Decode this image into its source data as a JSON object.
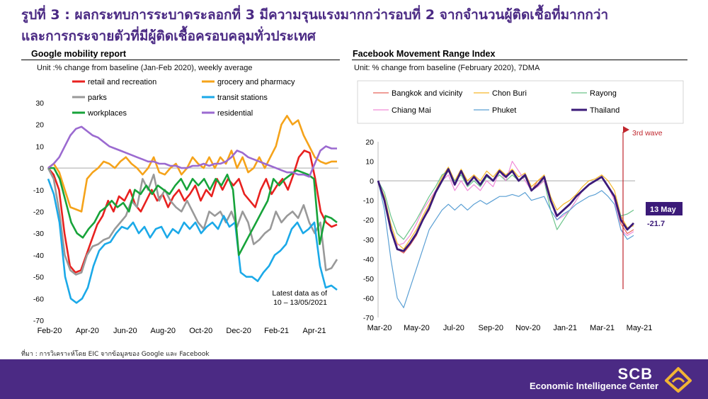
{
  "title_line1": "รูปที่ 3 : ผลกระทบการระบาดระลอกที่ 3 มีความรุนแรงมากกว่ารอบที่ 2 จากจำนวนผู้ติดเชื้อที่มากกว่า",
  "title_line2": "และการกระจายตัวที่มีผู้ติดเชื้อครอบคลุมทั่วประเทศ",
  "source": "ที่มา : การวิเคราะห์โดย EIC จากข้อมูลของ Google และ Facebook",
  "footer": {
    "brand": "SCB",
    "subtitle": "Economic Intelligence Center"
  },
  "chart_data": [
    {
      "type": "line",
      "title": "Google mobility report",
      "unit": "Unit :% change from baseline (Jan-Feb 2020), weekly average",
      "ylim": [
        -70,
        30
      ],
      "yticks": [
        "30",
        "20",
        "10",
        "0",
        "-10",
        "-20",
        "-30",
        "-40",
        "-50",
        "-60",
        "-70"
      ],
      "x_tick_labels": [
        "Feb-20",
        "Apr-20",
        "Jun-20",
        "Aug-20",
        "Oct-20",
        "Dec-20",
        "Feb-21",
        "Apr-21"
      ],
      "note_line1": "Latest data as of",
      "note_line2": "10 – 13/05/2021",
      "series": [
        {
          "name": "retail and recreation",
          "color": "#e8211f",
          "values": [
            0,
            -3,
            -10,
            -30,
            -45,
            -48,
            -47,
            -40,
            -33,
            -26,
            -22,
            -15,
            -20,
            -13,
            -15,
            -10,
            -17,
            -20,
            -15,
            -10,
            -15,
            -12,
            -18,
            -13,
            -10,
            -15,
            -12,
            -8,
            -15,
            -10,
            -13,
            -5,
            -10,
            -5,
            -8,
            -5,
            -12,
            -15,
            -18,
            -10,
            -5,
            -12,
            -8,
            -5,
            -10,
            -3,
            5,
            8,
            7,
            -5,
            -20,
            -25,
            -27,
            -26
          ]
        },
        {
          "name": "grocery and pharmacy",
          "color": "#f5a31a",
          "values": [
            0,
            2,
            -2,
            -10,
            -18,
            -19,
            -20,
            -5,
            -2,
            0,
            3,
            2,
            0,
            3,
            5,
            2,
            0,
            -3,
            0,
            5,
            -2,
            -3,
            0,
            2,
            -3,
            0,
            5,
            2,
            0,
            5,
            0,
            5,
            2,
            8,
            0,
            5,
            -2,
            0,
            5,
            0,
            5,
            10,
            20,
            24,
            20,
            22,
            15,
            10,
            5,
            3,
            2,
            3,
            3
          ]
        },
        {
          "name": "parks",
          "color": "#999999",
          "values": [
            0,
            -5,
            -20,
            -40,
            -47,
            -49,
            -48,
            -40,
            -36,
            -35,
            -33,
            -32,
            -28,
            -25,
            -22,
            -15,
            -18,
            -5,
            -10,
            -3,
            -15,
            -10,
            -15,
            -18,
            -20,
            -15,
            -20,
            -25,
            -28,
            -20,
            -22,
            -20,
            -25,
            -20,
            -27,
            -20,
            -25,
            -35,
            -33,
            -30,
            -28,
            -20,
            -25,
            -22,
            -20,
            -23,
            -17,
            -25,
            -30,
            -25,
            -47,
            -46,
            -42
          ]
        },
        {
          "name": "transit stations",
          "color": "#1ba9e8",
          "values": [
            -5,
            -12,
            -25,
            -50,
            -60,
            -62,
            -60,
            -55,
            -45,
            -38,
            -35,
            -34,
            -30,
            -27,
            -28,
            -25,
            -30,
            -27,
            -32,
            -28,
            -27,
            -32,
            -28,
            -30,
            -25,
            -28,
            -25,
            -30,
            -27,
            -25,
            -28,
            -22,
            -27,
            -25,
            -48,
            -50,
            -50,
            -52,
            -48,
            -45,
            -40,
            -38,
            -35,
            -28,
            -25,
            -30,
            -28,
            -25,
            -45,
            -55,
            -54,
            -56
          ]
        },
        {
          "name": "workplaces",
          "color": "#17a33a",
          "values": [
            0,
            0,
            -5,
            -15,
            -25,
            -30,
            -32,
            -28,
            -25,
            -20,
            -18,
            -15,
            -18,
            -16,
            -20,
            -10,
            -12,
            -8,
            -12,
            -8,
            -10,
            -12,
            -8,
            -5,
            -10,
            -5,
            -8,
            -5,
            -10,
            -5,
            -8,
            -3,
            -10,
            -40,
            -35,
            -30,
            -25,
            -20,
            -15,
            -5,
            -8,
            -5,
            -3,
            -1,
            -2,
            -3,
            -5,
            -35,
            -22,
            -23,
            -25
          ]
        },
        {
          "name": "residential",
          "color": "#9b6ad0",
          "values": [
            0,
            2,
            5,
            10,
            15,
            18,
            19,
            17,
            15,
            14,
            12,
            10,
            9,
            8,
            7,
            6,
            5,
            4,
            3,
            3,
            2,
            2,
            1,
            1,
            0,
            0,
            1,
            1,
            2,
            1,
            2,
            2,
            3,
            5,
            8,
            7,
            5,
            4,
            3,
            2,
            1,
            0,
            -1,
            -2,
            -2,
            -3,
            -3,
            -4,
            2,
            8,
            10,
            9,
            9
          ]
        }
      ]
    },
    {
      "type": "line",
      "title": "Facebook Movement Range Index",
      "unit": "Unit: % change from baseline (February 2020), 7DMA",
      "ylim": [
        -70,
        20
      ],
      "yticks": [
        "20",
        "10",
        "0",
        "-10",
        "-20",
        "-30",
        "-40",
        "-50",
        "-60",
        "-70"
      ],
      "x_tick_labels": [
        "Mar-20",
        "May-20",
        "Jul-20",
        "Sep-20",
        "Nov-20",
        "Jan-21",
        "Mar-21",
        "May-21"
      ],
      "annotation_wave": "3rd wave",
      "annotation_date": "13 May",
      "annotation_value": "-21.7",
      "series": [
        {
          "name": "Bangkok and vicinity",
          "color": "#e8635a",
          "values": [
            0,
            -10,
            -25,
            -35,
            -37,
            -33,
            -28,
            -20,
            -15,
            -5,
            0,
            5,
            -2,
            5,
            0,
            3,
            -2,
            3,
            0,
            5,
            2,
            5,
            0,
            3,
            -5,
            0,
            2,
            -10,
            -18,
            -15,
            -12,
            -8,
            -5,
            -2,
            0,
            2,
            -3,
            -8,
            -22,
            -27,
            -25
          ]
        },
        {
          "name": "Chon Buri",
          "color": "#f5b82b",
          "values": [
            0,
            -8,
            -22,
            -32,
            -35,
            -30,
            -25,
            -18,
            -12,
            -5,
            2,
            7,
            0,
            6,
            0,
            3,
            0,
            5,
            2,
            6,
            3,
            6,
            2,
            4,
            -3,
            0,
            3,
            -8,
            -15,
            -12,
            -10,
            -7,
            -3,
            0,
            1,
            3,
            0,
            -5,
            -18,
            -24,
            -23
          ]
        },
        {
          "name": "Rayong",
          "color": "#6cc48a",
          "values": [
            0,
            -6,
            -18,
            -27,
            -30,
            -25,
            -20,
            -14,
            -8,
            -3,
            3,
            5,
            0,
            3,
            -3,
            0,
            -3,
            2,
            0,
            3,
            0,
            3,
            0,
            2,
            -5,
            -2,
            0,
            -15,
            -25,
            -20,
            -15,
            -10,
            -5,
            -2,
            0,
            2,
            -3,
            -8,
            -18,
            -17,
            -15
          ]
        },
        {
          "name": "Chiang Mai",
          "color": "#f08ad8",
          "values": [
            0,
            -10,
            -25,
            -33,
            -32,
            -28,
            -22,
            -15,
            -10,
            -5,
            0,
            3,
            -5,
            0,
            -5,
            -2,
            -5,
            0,
            -3,
            5,
            0,
            10,
            5,
            0,
            -5,
            -3,
            0,
            -10,
            -20,
            -18,
            -15,
            -10,
            -5,
            -2,
            0,
            2,
            -3,
            -10,
            -25,
            -28,
            -26
          ]
        },
        {
          "name": "Phuket",
          "color": "#5a9fd4",
          "values": [
            0,
            -15,
            -40,
            -60,
            -65,
            -55,
            -45,
            -35,
            -25,
            -20,
            -15,
            -12,
            -15,
            -12,
            -15,
            -12,
            -10,
            -12,
            -10,
            -8,
            -8,
            -7,
            -8,
            -6,
            -10,
            -9,
            -8,
            -15,
            -20,
            -17,
            -15,
            -12,
            -10,
            -8,
            -7,
            -5,
            -8,
            -12,
            -25,
            -30,
            -28
          ]
        },
        {
          "name": "Thailand",
          "color": "#3b1a78",
          "values": [
            0,
            -10,
            -25,
            -35,
            -36,
            -32,
            -27,
            -20,
            -14,
            -6,
            0,
            6,
            -2,
            5,
            -2,
            2,
            -2,
            3,
            0,
            5,
            2,
            5,
            0,
            3,
            -5,
            -2,
            2,
            -10,
            -18,
            -15,
            -12,
            -8,
            -5,
            -2,
            0,
            2,
            -3,
            -8,
            -20,
            -25,
            -21.7
          ]
        }
      ]
    }
  ]
}
